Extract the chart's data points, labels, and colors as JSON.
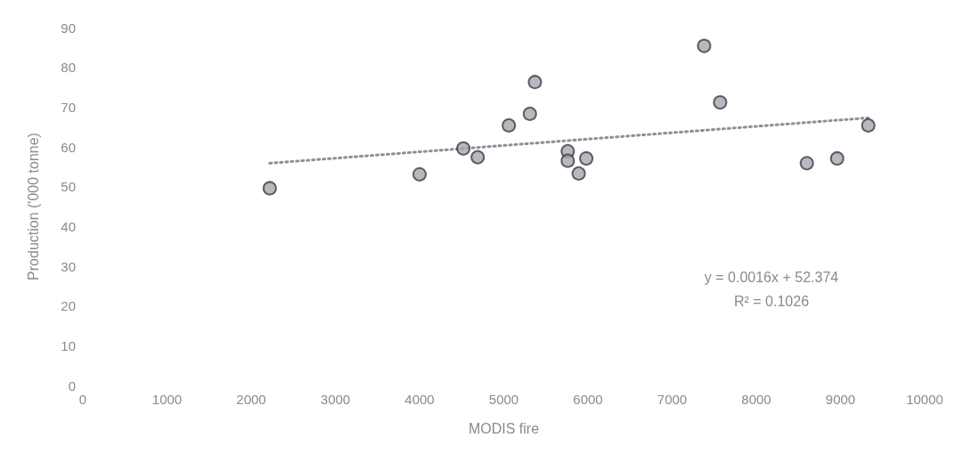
{
  "chart_data": {
    "type": "scatter",
    "xlabel": "MODIS fire",
    "ylabel": "Production ('000 tonne)",
    "xlim": [
      0,
      10000
    ],
    "xticks": [
      0,
      1000,
      2000,
      3000,
      4000,
      5000,
      6000,
      7000,
      8000,
      9000,
      10000
    ],
    "ylim": [
      0,
      90
    ],
    "yticks": [
      0,
      10,
      20,
      30,
      40,
      50,
      60,
      70,
      80,
      90
    ],
    "grid": false,
    "marker": "circle",
    "series": [
      {
        "color": "#a6a6ae",
        "x": [
          2220,
          4000,
          4520,
          4690,
          5060,
          5310,
          5370,
          5760,
          5760,
          5980,
          5890,
          7380,
          7570,
          8600,
          8960,
          9330
        ],
        "values": [
          49.6,
          53.1,
          59.6,
          57.4,
          65.4,
          68.3,
          76.3,
          58.9,
          56.5,
          57.1,
          53.3,
          85.4,
          71.2,
          55.9,
          57.1,
          65.4
        ]
      },
      {
        "type": "line",
        "color": "#8e8e9c",
        "line_style": "dotted",
        "marker": "none",
        "x": [
          2220,
          9330
        ],
        "values": [
          55.9,
          67.3
        ]
      }
    ],
    "annotations": [
      "y = 0.0016x + 52.374",
      "R² = 0.1026"
    ]
  }
}
